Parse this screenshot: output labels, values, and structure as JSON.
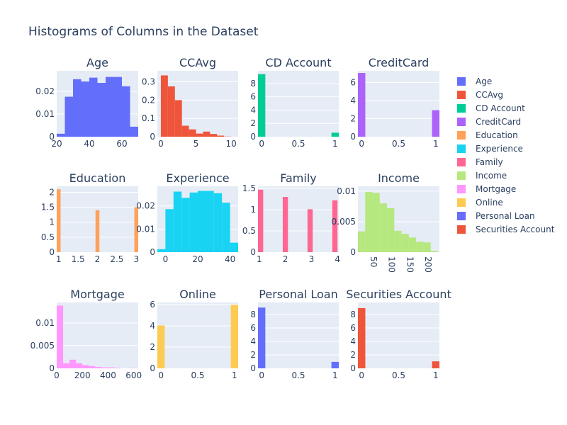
{
  "title": "Histograms of Columns in the Dataset",
  "colors": {
    "background": "#ffffff",
    "plot_bg": "#e5ecf6",
    "grid": "#ffffff",
    "text": "#2a3f5f"
  },
  "chart_data": [
    {
      "type": "bar",
      "title": "Age",
      "color": "#636efa",
      "xlim": [
        20,
        70
      ],
      "ylim": [
        0,
        0.029
      ],
      "x_ticks": [
        20,
        40,
        60
      ],
      "x_tick_labels": [
        "20",
        "40",
        "60"
      ],
      "y_ticks": [
        0,
        0.01,
        0.02
      ],
      "y_tick_labels": [
        "0",
        "0.01",
        "0.02"
      ],
      "bins": [
        [
          20,
          25,
          0.0013
        ],
        [
          25,
          30,
          0.0176
        ],
        [
          30,
          35,
          0.0253
        ],
        [
          35,
          40,
          0.0243
        ],
        [
          40,
          45,
          0.026
        ],
        [
          45,
          50,
          0.0237
        ],
        [
          50,
          55,
          0.0263
        ],
        [
          55,
          60,
          0.0263
        ],
        [
          60,
          65,
          0.0222
        ],
        [
          65,
          70,
          0.0044
        ]
      ]
    },
    {
      "type": "bar",
      "title": "CCAvg",
      "color": "#ef553b",
      "xlim": [
        -0.5,
        11
      ],
      "ylim": [
        0,
        0.36
      ],
      "x_ticks": [
        0,
        5,
        10
      ],
      "x_tick_labels": [
        "0",
        "5",
        "10"
      ],
      "y_ticks": [
        0,
        0.1,
        0.2,
        0.3
      ],
      "y_tick_labels": [
        "0",
        "0.1",
        "0.2",
        "0.3"
      ],
      "bins": [
        [
          0,
          1,
          0.335
        ],
        [
          1,
          2,
          0.275
        ],
        [
          2,
          3,
          0.2
        ],
        [
          3,
          4,
          0.06
        ],
        [
          4,
          5,
          0.04
        ],
        [
          5,
          6,
          0.017
        ],
        [
          6,
          7,
          0.028
        ],
        [
          7,
          8,
          0.015
        ],
        [
          8,
          9,
          0.006
        ],
        [
          9,
          10,
          0.001
        ]
      ]
    },
    {
      "type": "bar",
      "title": "CD Account",
      "color": "#00cc96",
      "xlim": [
        -0.05,
        1.05
      ],
      "ylim": [
        0,
        9.9
      ],
      "x_ticks": [
        0,
        0.5,
        1
      ],
      "x_tick_labels": [
        "0",
        "0.5",
        "1"
      ],
      "y_ticks": [
        0,
        2,
        4,
        6,
        8
      ],
      "y_tick_labels": [
        "0",
        "2",
        "4",
        "6",
        "8"
      ],
      "bins": [
        [
          -0.05,
          0.05,
          9.4
        ],
        [
          0.95,
          1.05,
          0.6
        ]
      ]
    },
    {
      "type": "bar",
      "title": "CreditCard",
      "color": "#ab63fa",
      "xlim": [
        -0.05,
        1.05
      ],
      "ylim": [
        0,
        7.3
      ],
      "x_ticks": [
        0,
        0.5,
        1
      ],
      "x_tick_labels": [
        "0",
        "0.5",
        "1"
      ],
      "y_ticks": [
        0,
        2,
        4,
        6
      ],
      "y_tick_labels": [
        "0",
        "2",
        "4",
        "6"
      ],
      "bins": [
        [
          -0.05,
          0.05,
          7.06
        ],
        [
          0.95,
          1.05,
          2.94
        ]
      ]
    },
    {
      "type": "bar",
      "title": "Education",
      "color": "#ffa15a",
      "xlim": [
        0.95,
        3.05
      ],
      "ylim": [
        0,
        2.2
      ],
      "x_ticks": [
        1,
        1.5,
        2,
        2.5,
        3
      ],
      "x_tick_labels": [
        "1",
        "1.5",
        "2",
        "2.5",
        "3"
      ],
      "y_ticks": [
        0,
        0.5,
        1,
        1.5,
        2
      ],
      "y_tick_labels": [
        "0",
        "0.5",
        "1",
        "1.5",
        "2"
      ],
      "bins": [
        [
          0.95,
          1.05,
          2.1
        ],
        [
          1.95,
          2.05,
          1.4
        ],
        [
          2.95,
          3.05,
          1.5
        ]
      ]
    },
    {
      "type": "bar",
      "title": "Experience",
      "color": "#19d3f3",
      "xlim": [
        -5,
        45
      ],
      "ylim": [
        0,
        0.0285
      ],
      "x_ticks": [
        0,
        20,
        40
      ],
      "x_tick_labels": [
        "0",
        "20",
        "40"
      ],
      "y_ticks": [
        0,
        0.01,
        0.02
      ],
      "y_tick_labels": [
        "0",
        "0.01",
        "0.02"
      ],
      "bins": [
        [
          -5,
          0,
          0.0013
        ],
        [
          0,
          5,
          0.0186
        ],
        [
          5,
          10,
          0.0262
        ],
        [
          10,
          15,
          0.0235
        ],
        [
          15,
          20,
          0.0258
        ],
        [
          20,
          25,
          0.0265
        ],
        [
          25,
          30,
          0.0265
        ],
        [
          30,
          35,
          0.0255
        ],
        [
          35,
          40,
          0.0214
        ],
        [
          40,
          45,
          0.0041
        ]
      ]
    },
    {
      "type": "bar",
      "title": "Family",
      "color": "#ff6692",
      "xlim": [
        0.95,
        4.05
      ],
      "ylim": [
        0,
        1.55
      ],
      "x_ticks": [
        1,
        2,
        3,
        4
      ],
      "x_tick_labels": [
        "1",
        "2",
        "3",
        "4"
      ],
      "y_ticks": [
        0,
        0.5,
        1,
        1.5
      ],
      "y_tick_labels": [
        "0",
        "0.5",
        "1",
        "1.5"
      ],
      "bins": [
        [
          0.95,
          1.15,
          1.47
        ],
        [
          1.9,
          2.1,
          1.3
        ],
        [
          2.85,
          3.05,
          1.01
        ],
        [
          3.8,
          4.0,
          1.22
        ]
      ]
    },
    {
      "type": "bar",
      "title": "Income",
      "color": "#b6e880",
      "xlim": [
        8,
        232
      ],
      "ylim": [
        0,
        0.0108
      ],
      "x_ticks": [
        50,
        100,
        150,
        200
      ],
      "x_tick_labels": [
        "50",
        "100",
        "150",
        "200"
      ],
      "y_ticks": [
        0,
        0.005,
        0.01
      ],
      "y_tick_labels": [
        "0",
        "0.005",
        "0.01"
      ],
      "bins": [
        [
          8,
          28,
          0.0034
        ],
        [
          28,
          48,
          0.0099
        ],
        [
          48,
          68,
          0.0097
        ],
        [
          68,
          88,
          0.008
        ],
        [
          88,
          108,
          0.0072
        ],
        [
          108,
          128,
          0.0035
        ],
        [
          128,
          148,
          0.003
        ],
        [
          148,
          168,
          0.0024
        ],
        [
          168,
          188,
          0.0017
        ],
        [
          188,
          208,
          0.0016
        ],
        [
          208,
          228,
          0.0002
        ]
      ]
    },
    {
      "type": "bar",
      "title": "Mortgage",
      "color": "#ff97ff",
      "xlim": [
        0,
        635
      ],
      "ylim": [
        0,
        0.0145
      ],
      "x_ticks": [
        0,
        200,
        400,
        600
      ],
      "x_tick_labels": [
        "0",
        "200",
        "400",
        "600"
      ],
      "y_ticks": [
        0,
        0.005,
        0.01
      ],
      "y_tick_labels": [
        "0",
        "0.005",
        "0.01"
      ],
      "bins": [
        [
          0,
          50,
          0.0138
        ],
        [
          50,
          100,
          0.0011
        ],
        [
          100,
          150,
          0.0019
        ],
        [
          150,
          200,
          0.0011
        ],
        [
          200,
          250,
          0.0007
        ],
        [
          250,
          300,
          0.0005
        ],
        [
          300,
          350,
          0.0003
        ],
        [
          350,
          400,
          0.0002
        ],
        [
          400,
          450,
          0.0002
        ],
        [
          450,
          500,
          0.0001
        ],
        [
          550,
          600,
          5e-05
        ],
        [
          600,
          650,
          5e-05
        ]
      ]
    },
    {
      "type": "bar",
      "title": "Online",
      "color": "#fecb52",
      "xlim": [
        -0.05,
        1.05
      ],
      "ylim": [
        0,
        6.2
      ],
      "x_ticks": [
        0,
        0.5,
        1
      ],
      "x_tick_labels": [
        "0",
        "0.5",
        "1"
      ],
      "y_ticks": [
        0,
        2,
        4,
        6
      ],
      "y_tick_labels": [
        "0",
        "2",
        "4",
        "6"
      ],
      "bins": [
        [
          -0.05,
          0.05,
          4.03
        ],
        [
          0.95,
          1.05,
          5.97
        ]
      ]
    },
    {
      "type": "bar",
      "title": "Personal Loan",
      "color": "#636efa",
      "xlim": [
        -0.05,
        1.05
      ],
      "ylim": [
        0,
        9.8
      ],
      "x_ticks": [
        0,
        0.5,
        1
      ],
      "x_tick_labels": [
        "0",
        "0.5",
        "1"
      ],
      "y_ticks": [
        0,
        2,
        4,
        6,
        8
      ],
      "y_tick_labels": [
        "0",
        "2",
        "4",
        "6",
        "8"
      ],
      "bins": [
        [
          -0.05,
          0.05,
          9.04
        ],
        [
          0.95,
          1.05,
          0.96
        ]
      ]
    },
    {
      "type": "bar",
      "title": "Securities Account",
      "color": "#ef553b",
      "xlim": [
        -0.05,
        1.05
      ],
      "ylim": [
        0,
        9.8
      ],
      "x_ticks": [
        0,
        0.5,
        1
      ],
      "x_tick_labels": [
        "0",
        "0.5",
        "1"
      ],
      "y_ticks": [
        0,
        2,
        4,
        6,
        8
      ],
      "y_tick_labels": [
        "0",
        "2",
        "4",
        "6",
        "8"
      ],
      "bins": [
        [
          -0.05,
          0.05,
          8.96
        ],
        [
          0.95,
          1.05,
          1.04
        ]
      ]
    }
  ],
  "legend": {
    "position": "right",
    "items": [
      {
        "label": "Age",
        "color": "#636efa"
      },
      {
        "label": "CCAvg",
        "color": "#ef553b"
      },
      {
        "label": "CD Account",
        "color": "#00cc96"
      },
      {
        "label": "CreditCard",
        "color": "#ab63fa"
      },
      {
        "label": "Education",
        "color": "#ffa15a"
      },
      {
        "label": "Experience",
        "color": "#19d3f3"
      },
      {
        "label": "Family",
        "color": "#ff6692"
      },
      {
        "label": "Income",
        "color": "#b6e880"
      },
      {
        "label": "Mortgage",
        "color": "#ff97ff"
      },
      {
        "label": "Online",
        "color": "#fecb52"
      },
      {
        "label": "Personal Loan",
        "color": "#636efa"
      },
      {
        "label": "Securities Account",
        "color": "#ef553b"
      }
    ]
  }
}
